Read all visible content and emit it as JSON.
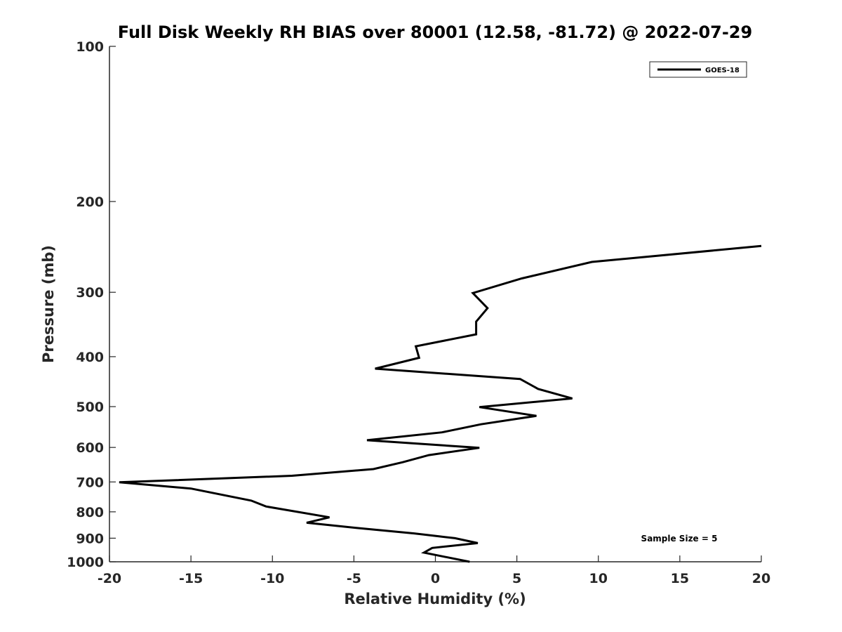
{
  "chart_data": {
    "type": "line",
    "title": "Full Disk Weekly RH BIAS over 80001 (12.58, -81.72) @ 2022-07-29",
    "xlabel": "Relative Humidity (%)",
    "ylabel": "Pressure (mb)",
    "xlim": [
      -20,
      20
    ],
    "ylim": [
      100,
      1000
    ],
    "y_scale": "log",
    "y_reversed": true,
    "grid": false,
    "legend_position": "top-right",
    "x_ticks": [
      "-20",
      "-15",
      "-10",
      "-5",
      "0",
      "5",
      "10",
      "15",
      "20"
    ],
    "y_ticks": [
      "100",
      "200",
      "300",
      "400",
      "500",
      "600",
      "700",
      "800",
      "900",
      "1000"
    ],
    "series": [
      {
        "name": "GOES-18",
        "color": "#000000",
        "points": [
          [
            20.0,
            244
          ],
          [
            9.6,
            262
          ],
          [
            5.3,
            282
          ],
          [
            2.3,
            301
          ],
          [
            3.2,
            322
          ],
          [
            2.5,
            342
          ],
          [
            2.5,
            362
          ],
          [
            -1.2,
            382
          ],
          [
            -1.0,
            402
          ],
          [
            -3.7,
            422
          ],
          [
            5.2,
            442
          ],
          [
            6.3,
            462
          ],
          [
            8.4,
            482
          ],
          [
            2.7,
            501
          ],
          [
            6.2,
            521
          ],
          [
            2.8,
            541
          ],
          [
            0.4,
            561
          ],
          [
            -4.2,
            581
          ],
          [
            2.7,
            601
          ],
          [
            -0.4,
            621
          ],
          [
            -2.0,
            641
          ],
          [
            -3.8,
            661
          ],
          [
            -8.8,
            681
          ],
          [
            -19.4,
            701
          ],
          [
            -15.0,
            721
          ],
          [
            -11.3,
            761
          ],
          [
            -10.4,
            781
          ],
          [
            -6.5,
            820
          ],
          [
            -7.9,
            840
          ],
          [
            -4.8,
            860
          ],
          [
            -1.3,
            881
          ],
          [
            1.2,
            900
          ],
          [
            2.6,
            920
          ],
          [
            -0.2,
            940
          ],
          [
            -0.7,
            960
          ],
          [
            2.1,
            1000
          ]
        ]
      }
    ],
    "annotations": [
      "Sample Size = 5"
    ]
  }
}
